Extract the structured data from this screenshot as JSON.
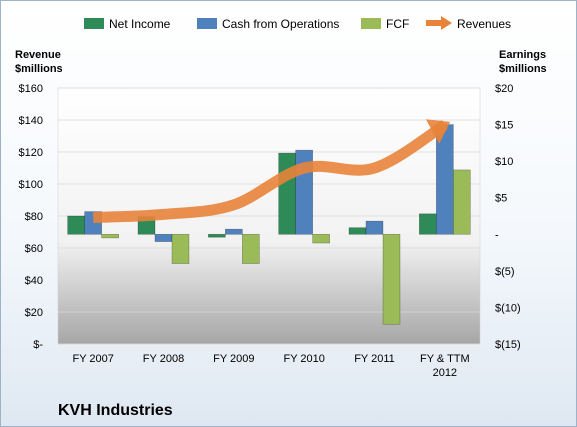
{
  "company_title": "KVH Industries",
  "chart_data": {
    "type": "bar",
    "categories": [
      "FY 2007",
      "FY 2008",
      "FY 2009",
      "FY 2010",
      "FY 2011",
      "FY & TTM 2012"
    ],
    "left_axis": {
      "label_line1": "Revenue",
      "label_line2": "$millions",
      "ylim": [
        0,
        160
      ],
      "ticks": [
        0,
        20,
        40,
        60,
        80,
        100,
        120,
        140,
        160
      ],
      "tick_labels": [
        "$-",
        "$20",
        "$40",
        "$60",
        "$80",
        "$100",
        "$120",
        "$140",
        "$160"
      ]
    },
    "right_axis": {
      "label_line1": "Earnings",
      "label_line2": "$millions",
      "ylim": [
        -15,
        20
      ],
      "ticks": [
        -15,
        -10,
        -5,
        0,
        5,
        10,
        15,
        20
      ],
      "tick_labels": [
        "$(15)",
        "$(10)",
        "$(5)",
        "-",
        "$5",
        "$10",
        "$15",
        "$20"
      ]
    },
    "series": [
      {
        "name": "Net Income",
        "axis": "right",
        "kind": "bar",
        "color": "#2e8b57",
        "values": [
          2.5,
          2.4,
          -0.4,
          11.1,
          0.9,
          2.8
        ]
      },
      {
        "name": "Cash from Operations",
        "axis": "right",
        "kind": "bar",
        "color": "#4f81bd",
        "values": [
          3.1,
          -1.0,
          0.7,
          11.5,
          1.8,
          15.0
        ]
      },
      {
        "name": "FCF",
        "axis": "right",
        "kind": "bar",
        "color": "#9bbb59",
        "values": [
          -0.5,
          -4.0,
          -4.0,
          -1.2,
          -12.3,
          8.8
        ]
      },
      {
        "name": "Revenues",
        "axis": "left",
        "kind": "line",
        "color": "#e8833a",
        "values": [
          79,
          81,
          87,
          110,
          110,
          137
        ]
      }
    ],
    "grid": true,
    "legend_position": "top"
  }
}
